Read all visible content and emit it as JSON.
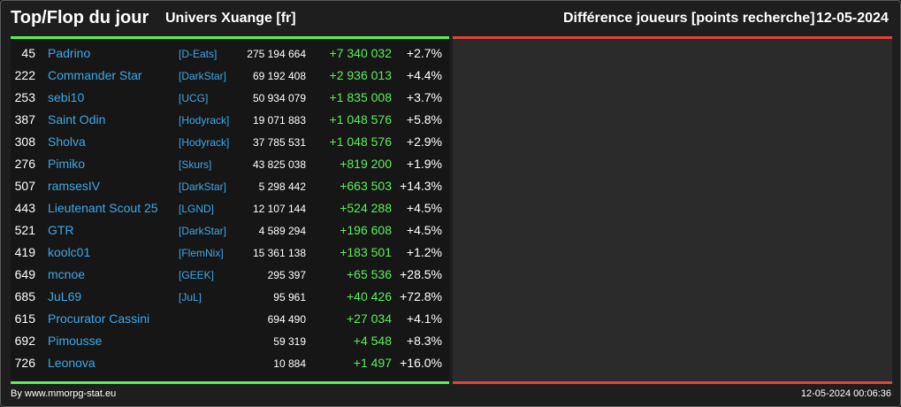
{
  "header": {
    "title": "Top/Flop du jour",
    "subtitle": "Univers Xuange [fr]",
    "metric": "Différence joueurs [points recherche]",
    "date": "12-05-2024"
  },
  "rows": [
    {
      "rank": "45",
      "name": "Padrino",
      "alliance": "[D-Eats]",
      "points": "275 194 664",
      "diff": "+7 340 032",
      "pct": "+2.7%"
    },
    {
      "rank": "222",
      "name": "Commander Star",
      "alliance": "[DarkStar]",
      "points": "69 192 408",
      "diff": "+2 936 013",
      "pct": "+4.4%"
    },
    {
      "rank": "253",
      "name": "sebi10",
      "alliance": "[UCG]",
      "points": "50 934 079",
      "diff": "+1 835 008",
      "pct": "+3.7%"
    },
    {
      "rank": "387",
      "name": "Saint Odin",
      "alliance": "[Hodyrack]",
      "points": "19 071 883",
      "diff": "+1 048 576",
      "pct": "+5.8%"
    },
    {
      "rank": "308",
      "name": "Sholva",
      "alliance": "[Hodyrack]",
      "points": "37 785 531",
      "diff": "+1 048 576",
      "pct": "+2.9%"
    },
    {
      "rank": "276",
      "name": "Pimiko",
      "alliance": "[Skurs]",
      "points": "43 825 038",
      "diff": "+819 200",
      "pct": "+1.9%"
    },
    {
      "rank": "507",
      "name": "ramsesIV",
      "alliance": "[DarkStar]",
      "points": "5 298 442",
      "diff": "+663 503",
      "pct": "+14.3%"
    },
    {
      "rank": "443",
      "name": "Lieutenant Scout 25",
      "alliance": "[LGND]",
      "points": "12 107 144",
      "diff": "+524 288",
      "pct": "+4.5%"
    },
    {
      "rank": "521",
      "name": "GTR",
      "alliance": "[DarkStar]",
      "points": "4 589 294",
      "diff": "+196 608",
      "pct": "+4.5%"
    },
    {
      "rank": "419",
      "name": "koolc01",
      "alliance": "[FlemNix]",
      "points": "15 361 138",
      "diff": "+183 501",
      "pct": "+1.2%"
    },
    {
      "rank": "649",
      "name": "mcnoe",
      "alliance": "[GEEK]",
      "points": "295 397",
      "diff": "+65 536",
      "pct": "+28.5%"
    },
    {
      "rank": "685",
      "name": "JuL69",
      "alliance": "[JuL]",
      "points": "95 961",
      "diff": "+40 426",
      "pct": "+72.8%"
    },
    {
      "rank": "615",
      "name": "Procurator Cassini",
      "alliance": "",
      "points": "694 490",
      "diff": "+27 034",
      "pct": "+4.1%"
    },
    {
      "rank": "692",
      "name": "Pimousse",
      "alliance": "",
      "points": "59 319",
      "diff": "+4 548",
      "pct": "+8.3%"
    },
    {
      "rank": "726",
      "name": "Leonova",
      "alliance": "",
      "points": "10 884",
      "diff": "+1 497",
      "pct": "+16.0%"
    }
  ],
  "footer": {
    "credit": "By www.mmorpg-stat.eu",
    "timestamp": "12-05-2024 00:06:36"
  },
  "colors": {
    "gain": "#5bef5b",
    "loss": "#e0453d",
    "link": "#3ea8e8"
  }
}
